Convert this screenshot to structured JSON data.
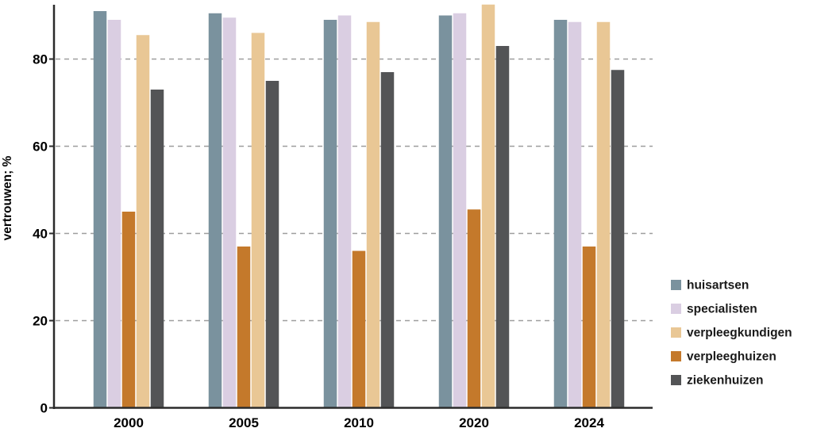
{
  "chart_data": {
    "type": "bar",
    "title": "",
    "xlabel": "",
    "ylabel": "vertrouwen; %",
    "categories": [
      "2000",
      "2005",
      "2010",
      "2020",
      "2024"
    ],
    "series": [
      {
        "name": "huisartsen",
        "color": "#7A929E",
        "values": [
          91,
          90.5,
          89,
          90,
          89
        ]
      },
      {
        "name": "specialisten",
        "color": "#DACEE2",
        "values": [
          89,
          89.5,
          90,
          90.5,
          88.5
        ]
      },
      {
        "name": "verpleegkundigen",
        "color": "#E9C795",
        "values": [
          85.5,
          86,
          88.5,
          92.5,
          88.5
        ]
      },
      {
        "name": "verpleeghuizen",
        "color": "#C4792B",
        "values": [
          45,
          37,
          36,
          45.5,
          37
        ]
      },
      {
        "name": "ziekenhuizen",
        "color": "#535456",
        "values": [
          73,
          75,
          77,
          83,
          77.5
        ]
      }
    ],
    "bar_draw_order": [
      "huisartsen",
      "specialisten",
      "verpleeghuizen",
      "verpleegkundigen",
      "ziekenhuizen"
    ],
    "yticks": [
      0,
      20,
      40,
      60,
      80
    ],
    "ylim": [
      0,
      92.5
    ],
    "grid": "dashed-horizontal",
    "legend_position": "right",
    "colors": {
      "axis": "#2B2B2B",
      "gridline": "#9E9E9E",
      "text": "#000000",
      "background": "#FFFFFF"
    }
  }
}
